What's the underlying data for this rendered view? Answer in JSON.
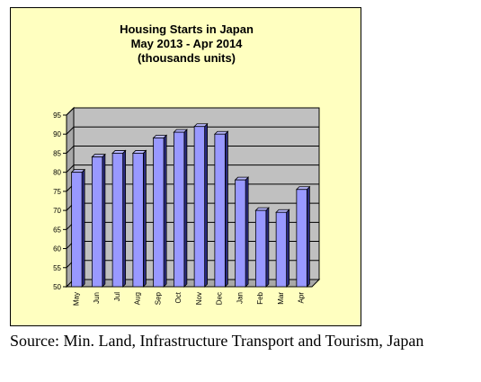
{
  "chart_data": {
    "type": "bar",
    "title_lines": [
      "Housing Starts in Japan",
      "May 2013 - Apr 2014",
      "(thousands units)"
    ],
    "categories": [
      "May",
      "Jun",
      "Jul",
      "Aug",
      "Sep",
      "Oct",
      "Nov",
      "Dec",
      "Jan",
      "Feb",
      "Mar",
      "Apr"
    ],
    "values": [
      80,
      84,
      85,
      85,
      89,
      90.5,
      92,
      90,
      78,
      70,
      69.5,
      75.5
    ],
    "ylim": [
      50,
      95
    ],
    "yticks": [
      50,
      55,
      60,
      65,
      70,
      75,
      80,
      85,
      90,
      95
    ],
    "grid": true,
    "bar_color": "#9999ff",
    "bar_side_color": "#2b2b80",
    "wall_color": "#c0c0c0",
    "background_color": "#ffffc0"
  },
  "source": "Source: Min. Land, Infrastructure Transport and Tourism, Japan"
}
